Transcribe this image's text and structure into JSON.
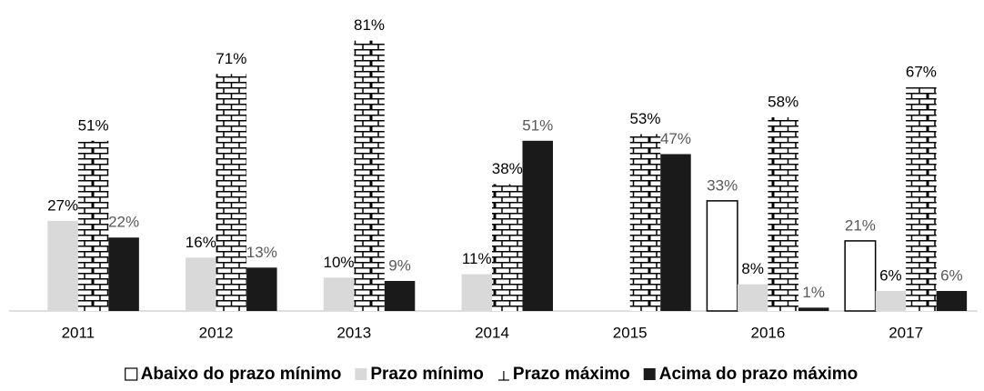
{
  "chart_data": {
    "type": "bar",
    "categories": [
      "2011",
      "2012",
      "2013",
      "2014",
      "2015",
      "2016",
      "2017"
    ],
    "ylim": [
      0,
      85
    ],
    "series": [
      {
        "name": "Abaixo do prazo mínimo",
        "color": "#ffffff",
        "label_color": "#595959",
        "values": [
          null,
          null,
          null,
          null,
          null,
          33,
          21
        ],
        "value_labels": [
          null,
          null,
          null,
          null,
          null,
          "33%",
          "21%"
        ]
      },
      {
        "name": "Prazo mínimo",
        "color": "#d9d9d9",
        "label_color": "#000000",
        "values": [
          27,
          16,
          10,
          11,
          null,
          8,
          6
        ],
        "value_labels": [
          "27%",
          "16%",
          "10%",
          "11%",
          null,
          "8%",
          "6%"
        ]
      },
      {
        "name": "Prazo máximo",
        "color": "#000000",
        "pattern": "brick",
        "label_color": "#000000",
        "values": [
          51,
          71,
          81,
          38,
          53,
          58,
          67
        ],
        "value_labels": [
          "51%",
          "71%",
          "81%",
          "38%",
          "53%",
          "58%",
          "67%"
        ]
      },
      {
        "name": "Acima do prazo máximo",
        "color": "#1a1a1a",
        "label_color": "#595959",
        "values": [
          22,
          13,
          9,
          51,
          47,
          1,
          6
        ],
        "value_labels": [
          "22%",
          "13%",
          "9%",
          "51%",
          "47%",
          "1%",
          "6%"
        ]
      }
    ]
  }
}
